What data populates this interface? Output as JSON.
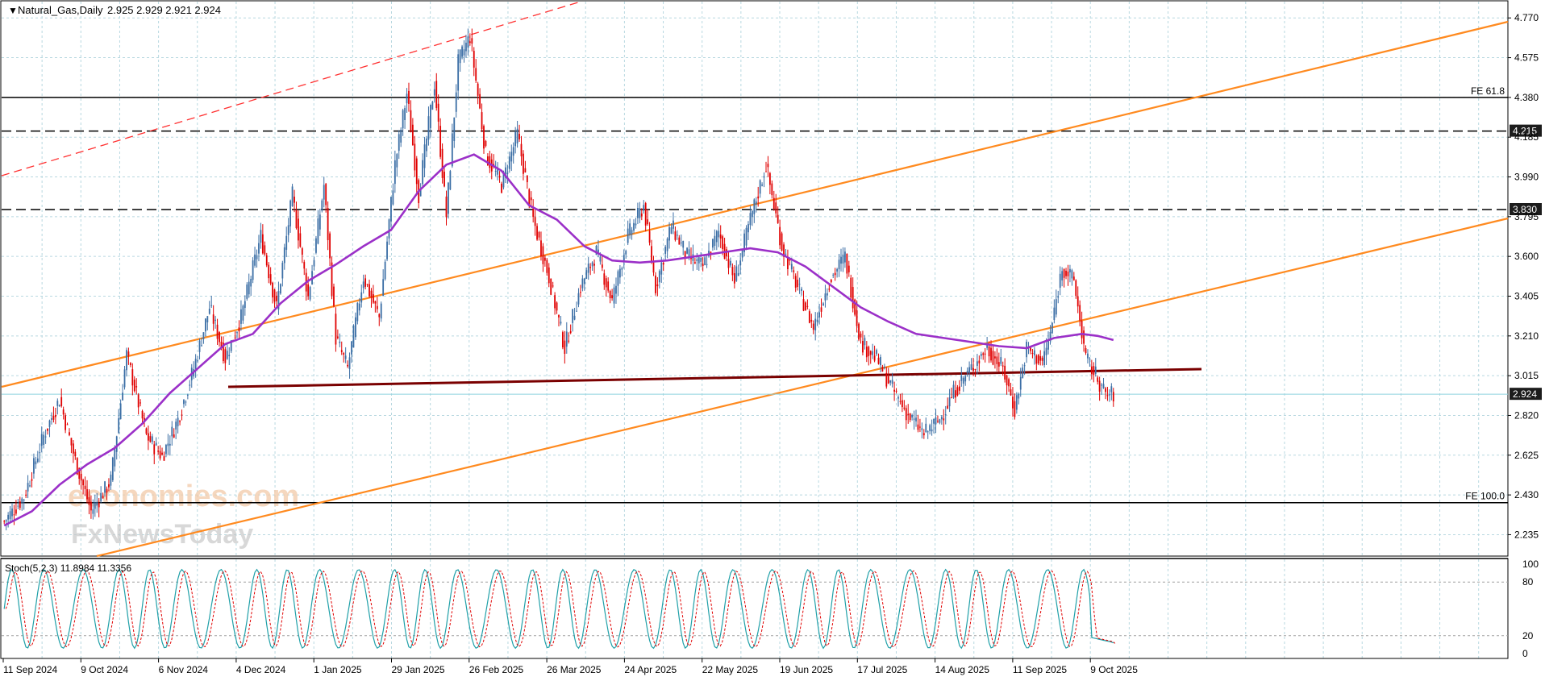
{
  "header": {
    "symbol_label": "Natural_Gas,Daily",
    "ohlc": "2.925 2.929 2.921 2.924"
  },
  "stoch_label": "Stoch(5,2,3) 11.8984 11.3356",
  "watermark": {
    "line1": "economies.com",
    "line2": "FxNewsToday"
  },
  "colors": {
    "bull": "#3b6ea5",
    "bear": "#e00000",
    "channel": "#ff8a1f",
    "ma": "#9b30c8",
    "support": "#7a0000",
    "stoch_main": "#20a0a8",
    "stoch_signal": "#e00000",
    "grid": "#b8d8e0"
  },
  "chart_data": [
    {
      "type": "candlestick",
      "symbol": "Natural_Gas",
      "timeframe": "Daily",
      "last_price": 2.924,
      "ylim": [
        2.13,
        4.85
      ],
      "y_ticks": [
        2.235,
        2.43,
        2.625,
        2.82,
        3.015,
        3.21,
        3.405,
        3.6,
        3.795,
        3.99,
        4.185,
        4.38,
        4.575,
        4.77
      ],
      "y_tick_labels": [
        "2.235",
        "2.430",
        "2.625",
        "2.820",
        "3.015",
        "3.210",
        "3.405",
        "3.600",
        "3.795",
        "3.990",
        "4.185",
        "4.380",
        "4.575",
        "4.770"
      ],
      "x_tick_labels": [
        "11 Sep 2024",
        "9 Oct 2024",
        "6 Nov 2024",
        "4 Dec 2024",
        "1 Jan 2025",
        "29 Jan 2025",
        "26 Feb 2025",
        "26 Mar 2025",
        "24 Apr 2025",
        "22 May 2025",
        "19 Jun 2025",
        "17 Jul 2025",
        "14 Aug 2025",
        "11 Sep 2025",
        "9 Oct 2025"
      ],
      "price_path": [
        [
          0,
          2.3
        ],
        [
          10,
          2.42
        ],
        [
          20,
          2.72
        ],
        [
          28,
          2.9
        ],
        [
          36,
          2.6
        ],
        [
          44,
          2.35
        ],
        [
          54,
          2.5
        ],
        [
          62,
          3.12
        ],
        [
          72,
          2.72
        ],
        [
          80,
          2.62
        ],
        [
          88,
          2.8
        ],
        [
          96,
          3.05
        ],
        [
          104,
          3.35
        ],
        [
          112,
          3.1
        ],
        [
          120,
          3.3
        ],
        [
          130,
          3.7
        ],
        [
          138,
          3.35
        ],
        [
          146,
          3.9
        ],
        [
          154,
          3.4
        ],
        [
          162,
          3.95
        ],
        [
          168,
          3.2
        ],
        [
          174,
          3.05
        ],
        [
          182,
          3.5
        ],
        [
          190,
          3.3
        ],
        [
          198,
          4.05
        ],
        [
          204,
          4.4
        ],
        [
          210,
          3.9
        ],
        [
          218,
          4.45
        ],
        [
          224,
          3.8
        ],
        [
          230,
          4.55
        ],
        [
          236,
          4.68
        ],
        [
          244,
          4.1
        ],
        [
          252,
          3.95
        ],
        [
          260,
          4.2
        ],
        [
          268,
          3.78
        ],
        [
          276,
          3.5
        ],
        [
          284,
          3.15
        ],
        [
          292,
          3.45
        ],
        [
          300,
          3.62
        ],
        [
          308,
          3.38
        ],
        [
          316,
          3.7
        ],
        [
          324,
          3.85
        ],
        [
          330,
          3.45
        ],
        [
          338,
          3.75
        ],
        [
          346,
          3.6
        ],
        [
          354,
          3.55
        ],
        [
          362,
          3.72
        ],
        [
          370,
          3.48
        ],
        [
          378,
          3.78
        ],
        [
          386,
          4.05
        ],
        [
          394,
          3.65
        ],
        [
          402,
          3.45
        ],
        [
          410,
          3.25
        ],
        [
          418,
          3.48
        ],
        [
          426,
          3.6
        ],
        [
          434,
          3.18
        ],
        [
          442,
          3.1
        ],
        [
          450,
          2.95
        ],
        [
          458,
          2.82
        ],
        [
          466,
          2.73
        ],
        [
          474,
          2.8
        ],
        [
          482,
          2.95
        ],
        [
          490,
          3.05
        ],
        [
          498,
          3.15
        ],
        [
          506,
          3.05
        ],
        [
          512,
          2.85
        ],
        [
          518,
          3.15
        ],
        [
          526,
          3.08
        ],
        [
          530,
          3.22
        ],
        [
          536,
          3.55
        ],
        [
          542,
          3.48
        ],
        [
          548,
          3.1
        ],
        [
          554,
          3.0
        ],
        [
          558,
          2.92
        ],
        [
          562,
          2.924
        ]
      ],
      "moving_average_path": [
        [
          0,
          2.28
        ],
        [
          14,
          2.35
        ],
        [
          28,
          2.48
        ],
        [
          42,
          2.58
        ],
        [
          56,
          2.66
        ],
        [
          70,
          2.78
        ],
        [
          84,
          2.93
        ],
        [
          98,
          3.05
        ],
        [
          112,
          3.17
        ],
        [
          126,
          3.22
        ],
        [
          140,
          3.37
        ],
        [
          154,
          3.48
        ],
        [
          168,
          3.56
        ],
        [
          182,
          3.65
        ],
        [
          196,
          3.73
        ],
        [
          210,
          3.92
        ],
        [
          224,
          4.05
        ],
        [
          238,
          4.1
        ],
        [
          252,
          4.02
        ],
        [
          266,
          3.85
        ],
        [
          280,
          3.78
        ],
        [
          294,
          3.65
        ],
        [
          308,
          3.58
        ],
        [
          322,
          3.57
        ],
        [
          336,
          3.58
        ],
        [
          350,
          3.6
        ],
        [
          364,
          3.62
        ],
        [
          378,
          3.64
        ],
        [
          392,
          3.62
        ],
        [
          406,
          3.55
        ],
        [
          420,
          3.45
        ],
        [
          434,
          3.35
        ],
        [
          448,
          3.28
        ],
        [
          462,
          3.22
        ],
        [
          476,
          3.2
        ],
        [
          490,
          3.18
        ],
        [
          504,
          3.16
        ],
        [
          518,
          3.15
        ],
        [
          532,
          3.2
        ],
        [
          546,
          3.22
        ],
        [
          554,
          3.21
        ],
        [
          562,
          3.19
        ]
      ],
      "indicator": {
        "name": "Stoch(5,2,3)",
        "main": 11.8984,
        "signal": 11.3356,
        "levels": [
          20,
          80
        ],
        "ylim": [
          0,
          100
        ],
        "y_tick_labels": [
          "0",
          "20",
          "80",
          "100"
        ]
      }
    }
  ],
  "levels": [
    {
      "name": "FE 61.8",
      "value": 4.38,
      "style": "solid",
      "label": "FE 61.8"
    },
    {
      "name": "FE 100.0",
      "value": 2.392,
      "style": "solid",
      "label": "FE 100.0"
    },
    {
      "name": "resistance-upper",
      "value": 4.215,
      "style": "dashed",
      "label": "4.215"
    },
    {
      "name": "resistance-lower",
      "value": 3.83,
      "style": "dashed",
      "label": "3.830"
    }
  ]
}
